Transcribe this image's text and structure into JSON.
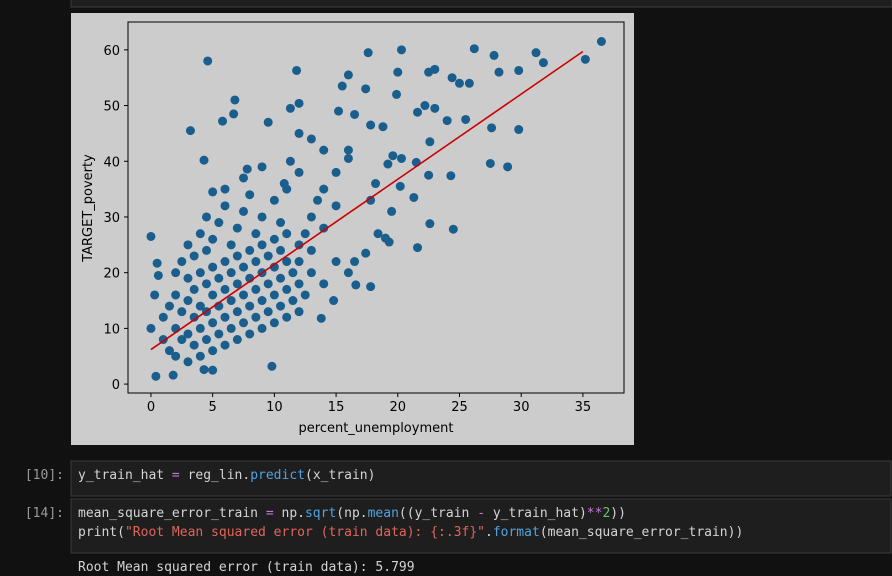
{
  "chart": {
    "type": "scatter",
    "xlabel": "percent_unemployment",
    "ylabel": "TARGET_poverty",
    "xlim": [
      -1.86,
      38.33
    ],
    "ylim": [
      -1.6,
      65.0
    ],
    "xticks": [
      0,
      5,
      10,
      15,
      20,
      25,
      30,
      35
    ],
    "yticks": [
      0,
      10,
      20,
      30,
      40,
      50,
      60
    ],
    "background": "#cccccc",
    "points": {
      "color": "#1a5e8e",
      "x": [
        4.6,
        17.6,
        20.3,
        26.2,
        36.5,
        35.2,
        31.2,
        27.8,
        31.8,
        28.2,
        29.8,
        23,
        22.5,
        20,
        16,
        11.8,
        15.5,
        24.4,
        25,
        25.8,
        17.4,
        19.9,
        6.8,
        6.7,
        5.8,
        3.2,
        9.5,
        11.3,
        12,
        15.2,
        16.5,
        17.8,
        18.8,
        21.6,
        22.2,
        23,
        25.5,
        27.6,
        29.8,
        24,
        12,
        13,
        14,
        16,
        16,
        19.6,
        20.3,
        19.2,
        22.6,
        21.5,
        27.5,
        28.9,
        22.5,
        24.3,
        18.2,
        20.2,
        21.3,
        17.8,
        19.5,
        24.5,
        22.6,
        19.3,
        21.6,
        19,
        18.4,
        17.4,
        16.5,
        16,
        14.8,
        16.6,
        17.8,
        13.8,
        4.3,
        7.8,
        9,
        5,
        0,
        0.5,
        0.6,
        0.3,
        0,
        0.4,
        1.8,
        4.3,
        9.8,
        13,
        12,
        14,
        15,
        10,
        10.8,
        11.3,
        1,
        1,
        1.5,
        1.5,
        2,
        2,
        2,
        2,
        2.5,
        2.5,
        2.5,
        3,
        3,
        3,
        3,
        3,
        3.5,
        3.5,
        3.5,
        3.5,
        4,
        4,
        4,
        4,
        4,
        4.5,
        4.5,
        4.5,
        4.5,
        4.5,
        5,
        5,
        5,
        5,
        5,
        5.5,
        5.5,
        5.5,
        5.5,
        6,
        6,
        6,
        6,
        6,
        6.5,
        6.5,
        6.5,
        6.5,
        7,
        7,
        7,
        7,
        7,
        7.5,
        7.5,
        7.5,
        7.5,
        8,
        8,
        8,
        8,
        8,
        8.5,
        8.5,
        8.5,
        8.5,
        9,
        9,
        9,
        9,
        9,
        9.5,
        9.5,
        9.5,
        10,
        10,
        10,
        10,
        10.5,
        10.5,
        10.5,
        10.5,
        11,
        11,
        11,
        11,
        11.5,
        11.5,
        12,
        12,
        12,
        12.5,
        12.5,
        13,
        13,
        14,
        14,
        15,
        15,
        13.5,
        11,
        12,
        6,
        7.5,
        5
      ],
      "y": [
        58,
        59.5,
        60,
        60.2,
        61.5,
        58.3,
        59.5,
        59,
        57.7,
        56,
        56.3,
        56.5,
        56,
        56,
        55.5,
        56.3,
        53.5,
        55,
        54,
        54,
        53,
        52,
        51,
        48.5,
        47.2,
        45.5,
        47,
        49.5,
        50.4,
        49,
        48.4,
        46.5,
        46.2,
        48.8,
        50,
        49.5,
        47.5,
        46,
        45.7,
        47.3,
        45,
        44,
        42,
        42,
        40.5,
        41,
        40.5,
        39.5,
        43.5,
        39.8,
        39.6,
        39,
        37.5,
        37.4,
        36,
        35.5,
        33.5,
        33,
        31,
        27.8,
        28.8,
        25.5,
        24.5,
        26.2,
        27,
        23.5,
        22,
        20,
        15,
        17.8,
        17.5,
        11.8,
        40.2,
        38.6,
        39,
        34.5,
        26.5,
        21.7,
        19.5,
        16,
        10,
        1.4,
        1.6,
        2.6,
        3.2,
        30,
        25,
        35,
        38,
        33,
        36,
        40,
        8,
        12,
        6,
        14,
        5,
        10,
        16,
        20,
        8,
        13,
        22,
        4,
        9,
        15,
        19,
        25,
        7,
        12,
        17,
        23,
        5,
        10,
        14,
        20,
        27,
        8,
        13,
        18,
        24,
        30,
        6,
        11,
        16,
        21,
        26,
        9,
        14,
        19,
        29,
        7,
        12,
        17,
        22,
        32,
        10,
        15,
        20,
        25,
        8,
        13,
        18,
        23,
        28,
        11,
        16,
        21,
        31,
        9,
        14,
        19,
        24,
        34,
        12,
        17,
        22,
        27,
        10,
        15,
        20,
        25,
        30,
        13,
        18,
        23,
        11,
        16,
        21,
        26,
        14,
        19,
        24,
        29,
        12,
        17,
        22,
        27,
        15,
        20,
        13,
        18,
        22,
        16,
        27,
        20,
        24,
        18,
        28,
        22,
        32,
        33,
        35,
        38,
        35,
        37,
        2.5
      ]
    },
    "fit_line": {
      "color": "#cc0000",
      "x": [
        0,
        35
      ],
      "y": [
        6.2,
        59.7
      ]
    }
  },
  "cells": [
    {
      "prompt": "[10]:",
      "lines": [
        [
          {
            "text": "y_train_hat ",
            "color": "#d4d4d4"
          },
          {
            "text": "=",
            "color": "#c678dd"
          },
          {
            "text": " reg_lin.",
            "color": "#d4d4d4"
          },
          {
            "text": "predict",
            "color": "#4fa3e0"
          },
          {
            "text": "(x_train)",
            "color": "#d4d4d4"
          }
        ]
      ]
    },
    {
      "prompt": "[14]:",
      "lines": [
        [
          {
            "text": "mean_square_error_train ",
            "color": "#d4d4d4"
          },
          {
            "text": "=",
            "color": "#c678dd"
          },
          {
            "text": " np.",
            "color": "#d4d4d4"
          },
          {
            "text": "sqrt",
            "color": "#4fa3e0"
          },
          {
            "text": "(np.",
            "color": "#d4d4d4"
          },
          {
            "text": "mean",
            "color": "#4fa3e0"
          },
          {
            "text": "((y_train ",
            "color": "#d4d4d4"
          },
          {
            "text": "-",
            "color": "#c678dd"
          },
          {
            "text": " y_train_hat)",
            "color": "#d4d4d4"
          },
          {
            "text": "**",
            "color": "#c678dd"
          },
          {
            "text": "2",
            "color": "#6cc070"
          },
          {
            "text": "))",
            "color": "#d4d4d4"
          }
        ],
        [
          {
            "text": "print(",
            "color": "#d4d4d4"
          },
          {
            "text": "\"Root Mean squared error (train data): {:.3f}\"",
            "color": "#e0645c"
          },
          {
            "text": ".",
            "color": "#d4d4d4"
          },
          {
            "text": "format",
            "color": "#4fa3e0"
          },
          {
            "text": "(mean_square_error_train))",
            "color": "#d4d4d4"
          }
        ]
      ],
      "output": "Root Mean squared error (train data): 5.799"
    }
  ]
}
